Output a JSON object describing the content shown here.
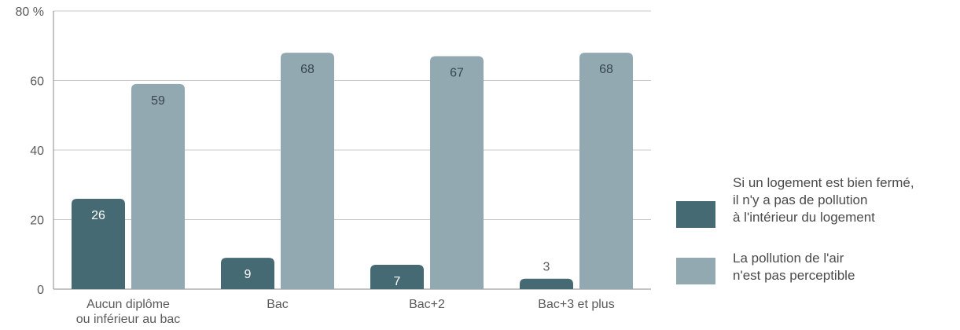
{
  "chart_data": {
    "type": "bar",
    "title": "",
    "xlabel": "",
    "ylabel": "",
    "ylim": [
      0,
      80
    ],
    "yticks": [
      0,
      20,
      40,
      60,
      80
    ],
    "ytick_labels": [
      "0",
      "20",
      "40",
      "60",
      "80 %"
    ],
    "grid": true,
    "legend_position": "right",
    "categories": [
      "Aucun diplôme\nou inférieur au bac",
      "Bac",
      "Bac+2",
      "Bac+3 et plus"
    ],
    "series": [
      {
        "name": "Si un logement est bien fermé,\nil n'y a pas de pollution\nà l'intérieur du logement",
        "color": "#466a74",
        "values": [
          26,
          9,
          7,
          3
        ]
      },
      {
        "name": "La pollution de l'air\nn'est pas perceptible",
        "color": "#92a9b1",
        "values": [
          59,
          68,
          67,
          68
        ]
      }
    ]
  },
  "colors": {
    "grid": "#c8c8c8",
    "axis": "#8a8a8a",
    "text": "#5a5a5a",
    "label_on_bar": "#ffffff",
    "label_on_light_bar": "#33474d"
  }
}
